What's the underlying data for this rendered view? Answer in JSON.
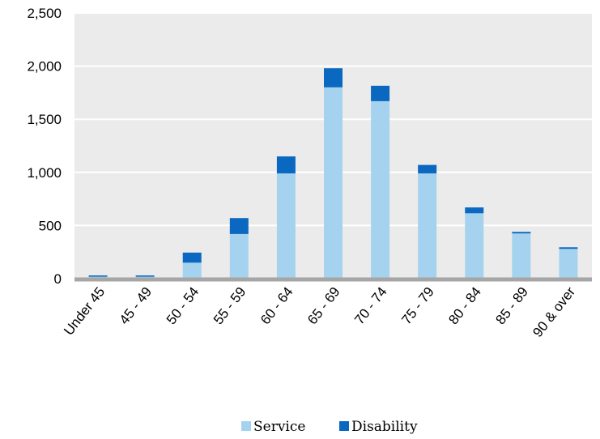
{
  "chart_data": {
    "type": "bar",
    "stacked": true,
    "categories": [
      "Under 45",
      "45 - 49",
      "50 - 54",
      "55 - 59",
      "60 - 64",
      "65 - 69",
      "70 - 74",
      "75 - 79",
      "80 - 84",
      "85 - 89",
      "90 & over"
    ],
    "series": [
      {
        "name": "Service",
        "color": "#a5d3ef",
        "values": [
          18,
          18,
          150,
          420,
          990,
          1800,
          1670,
          990,
          615,
          425,
          280
        ]
      },
      {
        "name": "Disability",
        "color": "#0b68c1",
        "values": [
          12,
          12,
          95,
          150,
          160,
          180,
          145,
          80,
          55,
          15,
          15
        ]
      }
    ],
    "ylim": [
      0,
      2500
    ],
    "yticks": [
      {
        "value": 0,
        "label": "0"
      },
      {
        "value": 500,
        "label": "500"
      },
      {
        "value": 1000,
        "label": "1,000"
      },
      {
        "value": 1500,
        "label": "1,500"
      },
      {
        "value": 2000,
        "label": "2,000"
      },
      {
        "value": 2500,
        "label": "2,500"
      }
    ],
    "grid": true,
    "legend": "bottom",
    "plot_background": "#ebebeb"
  }
}
